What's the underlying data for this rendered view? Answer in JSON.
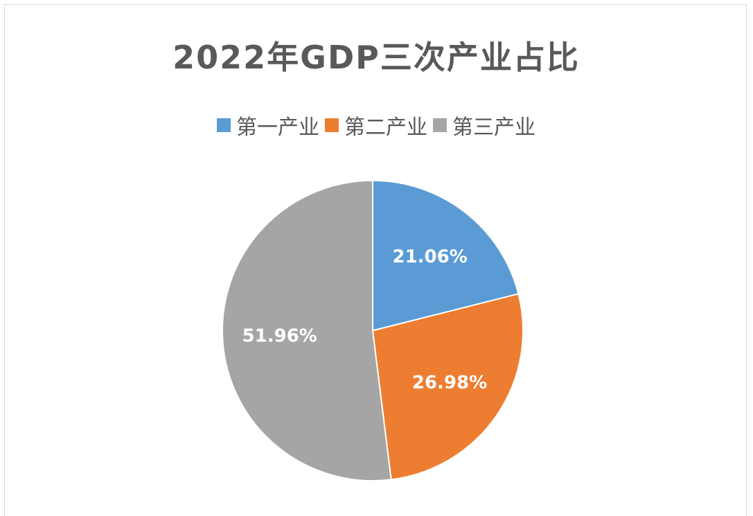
{
  "chart_data": {
    "type": "pie",
    "title": "2022年GDP三次产业占比",
    "categories": [
      "第一产业",
      "第二产业",
      "第三产业"
    ],
    "values": [
      21.06,
      26.98,
      51.96
    ],
    "labels": [
      "21.06%",
      "26.98%",
      "51.96%"
    ],
    "colors": [
      "#5b9bd5",
      "#ed7d31",
      "#a5a5a5"
    ],
    "legend_position": "top",
    "start_angle": "12 o'clock, clockwise"
  }
}
